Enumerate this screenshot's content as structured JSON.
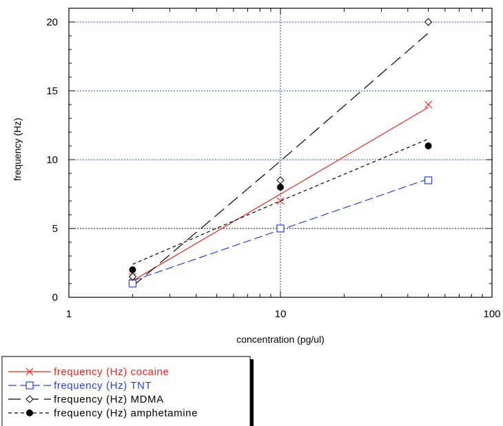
{
  "chart_data": {
    "type": "scatter",
    "xlabel": "concentration (pg/ul)",
    "ylabel": "frequency (Hz)",
    "xscale": "log",
    "xlim": [
      1,
      100
    ],
    "ylim": [
      0,
      21
    ],
    "xticks": [
      1,
      10,
      100
    ],
    "xtick_labels": [
      "1",
      "10",
      "100"
    ],
    "yticks": [
      0,
      5,
      10,
      15,
      20
    ],
    "ytick_labels": [
      "0",
      "5",
      "10",
      "15",
      "20"
    ],
    "grid": true,
    "legend_position": "bottom-left",
    "series": [
      {
        "name": "frequency (Hz) cocaine",
        "color": "#e8241f",
        "marker": "x-icon",
        "line": "solid",
        "x": [
          2,
          10,
          50
        ],
        "values": [
          1.5,
          7,
          14
        ],
        "fit": [
          [
            2,
            1.2
          ],
          [
            50,
            13.8
          ]
        ]
      },
      {
        "name": "frequency (Hz) TNT",
        "color": "#2a3fd6",
        "marker": "square-icon",
        "line": "dash",
        "x": [
          2,
          10,
          50
        ],
        "values": [
          1,
          5,
          8.5
        ],
        "fit": [
          [
            2,
            1.2
          ],
          [
            50,
            8.6
          ]
        ]
      },
      {
        "name": "frequency (Hz) MDMA",
        "color": "#000000",
        "marker": "diamond-icon",
        "line": "longdash",
        "x": [
          2,
          10,
          50
        ],
        "values": [
          1.5,
          8.5,
          20
        ],
        "fit": [
          [
            2,
            0.8
          ],
          [
            10,
            9.9
          ],
          [
            50,
            19.2
          ]
        ]
      },
      {
        "name": "frequency (Hz) amphetamine",
        "color": "#000000",
        "marker": "filled-circle-icon",
        "line": "shortdash",
        "x": [
          2,
          10,
          50
        ],
        "values": [
          2,
          8,
          11
        ],
        "fit": [
          [
            2,
            2.4
          ],
          [
            10,
            7
          ],
          [
            50,
            11.5
          ]
        ]
      }
    ]
  }
}
